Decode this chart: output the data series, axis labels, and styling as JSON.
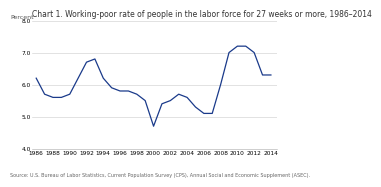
{
  "title": "Chart 1. Working-poor rate of people in the labor force for 27 weeks or more, 1986–2014",
  "ylabel": "Percent",
  "source": "Source: U.S. Bureau of Labor Statistics, Current Population Survey (CPS), Annual Social and Economic Supplement (ASEC).",
  "years": [
    1986,
    1987,
    1988,
    1989,
    1990,
    1991,
    1992,
    1993,
    1994,
    1995,
    1996,
    1997,
    1998,
    1999,
    2000,
    2001,
    2002,
    2003,
    2004,
    2005,
    2006,
    2007,
    2008,
    2009,
    2010,
    2011,
    2012,
    2013,
    2014
  ],
  "values": [
    6.2,
    5.7,
    5.6,
    5.6,
    5.7,
    6.2,
    6.7,
    6.8,
    6.2,
    5.9,
    5.8,
    5.8,
    5.7,
    5.5,
    4.7,
    5.4,
    5.5,
    5.7,
    5.6,
    5.3,
    5.1,
    5.1,
    6.0,
    7.0,
    7.2,
    7.2,
    7.0,
    6.3,
    6.3
  ],
  "line_color": "#1a3a8a",
  "ylim": [
    4.0,
    8.0
  ],
  "yticks": [
    4.0,
    5.0,
    6.0,
    7.0,
    8.0
  ],
  "xticks": [
    1986,
    1988,
    1990,
    1992,
    1994,
    1996,
    1998,
    2000,
    2002,
    2004,
    2006,
    2008,
    2010,
    2012,
    2014
  ],
  "bg_color": "#ffffff",
  "plot_bg": "#ffffff",
  "grid_color": "#cccccc",
  "title_fontsize": 5.5,
  "label_fontsize": 4.5,
  "tick_fontsize": 4.2,
  "source_fontsize": 3.5
}
